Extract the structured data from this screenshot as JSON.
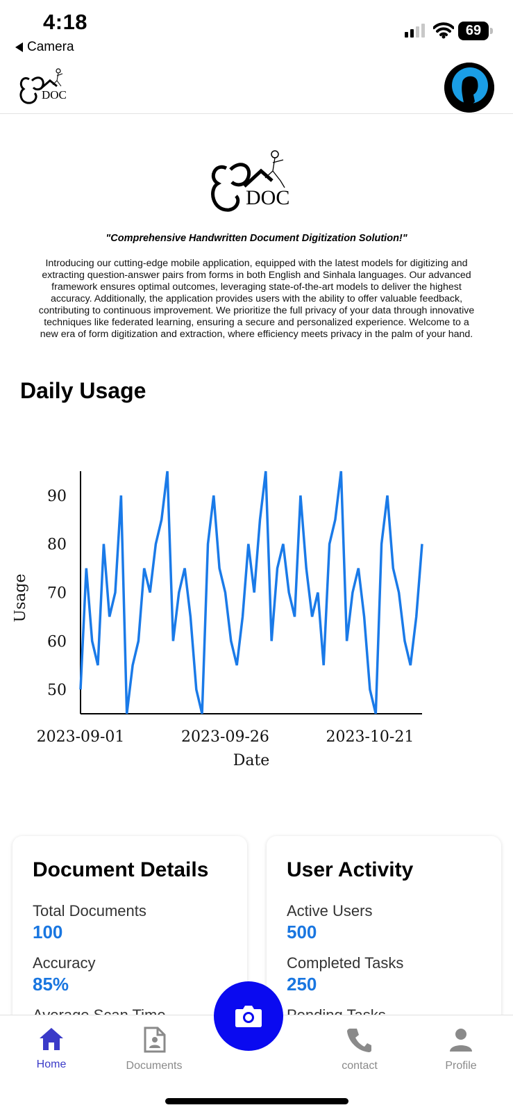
{
  "status_bar": {
    "time": "4:18",
    "back_app": "Camera",
    "battery": "69",
    "icons": [
      "signal-icon",
      "wifi-icon",
      "battery-icon"
    ]
  },
  "header": {
    "logo_text": "DOC",
    "avatar_icon": "user-silhouette-icon"
  },
  "hero": {
    "logo_text": "DOC",
    "tagline": "\"Comprehensive Handwritten Document Digitization Solution!\"",
    "intro": "Introducing our cutting-edge mobile application, equipped with the latest models for digitizing and extracting question-answer pairs from forms in both English and Sinhala languages. Our advanced framework ensures optimal outcomes, leveraging state-of-the-art models to deliver the highest accuracy. Additionally, the application provides users with the ability to offer valuable feedback, contributing to continuous improvement. We prioritize the full privacy of your data through innovative techniques like federated learning, ensuring a secure and personalized experience. Welcome to a new era of form digitization and extraction, where efficiency meets privacy in the palm of your hand."
  },
  "daily_usage": {
    "title": "Daily Usage"
  },
  "chart_data": {
    "type": "line",
    "title": "",
    "xlabel": "Date",
    "ylabel": "Usage",
    "x_ticks": [
      "2023-09-01",
      "2023-09-26",
      "2023-10-21"
    ],
    "y_ticks": [
      50,
      60,
      70,
      80,
      90
    ],
    "x_start": "2023-09-01",
    "x_end": "2023-10-30",
    "ylim": [
      45,
      95
    ],
    "grid": false,
    "color": "#1a7ae8",
    "series": [
      {
        "values": [
          50,
          75,
          60,
          55,
          80,
          65,
          70,
          90,
          45,
          55,
          60,
          75,
          70,
          80,
          85,
          95,
          60,
          70,
          75,
          65,
          50,
          45,
          80,
          90,
          75,
          70,
          60,
          55,
          65,
          80,
          70,
          85,
          95,
          60,
          75,
          80,
          70,
          65,
          90,
          75,
          65,
          70,
          55,
          80,
          85,
          95,
          60,
          70,
          75,
          65,
          50,
          45,
          80,
          90,
          75,
          70,
          60,
          55,
          65,
          80
        ]
      }
    ]
  },
  "document_details": {
    "title": "Document Details",
    "total_label": "Total Documents",
    "total_value": "100",
    "accuracy_label": "Accuracy",
    "accuracy_value": "85%",
    "scan_time_label": "Average Scan Time"
  },
  "user_activity": {
    "title": "User Activity",
    "active_label": "Active Users",
    "active_value": "500",
    "completed_label": "Completed Tasks",
    "completed_value": "250",
    "pending_label": "Pending Tasks"
  },
  "nav": {
    "home": "Home",
    "documents": "Documents",
    "contact": "contact",
    "profile": "Profile",
    "active": "home",
    "colors": {
      "active": "#3a3ac8",
      "inactive": "#8a8a8a",
      "fab": "#0a0af0"
    }
  }
}
